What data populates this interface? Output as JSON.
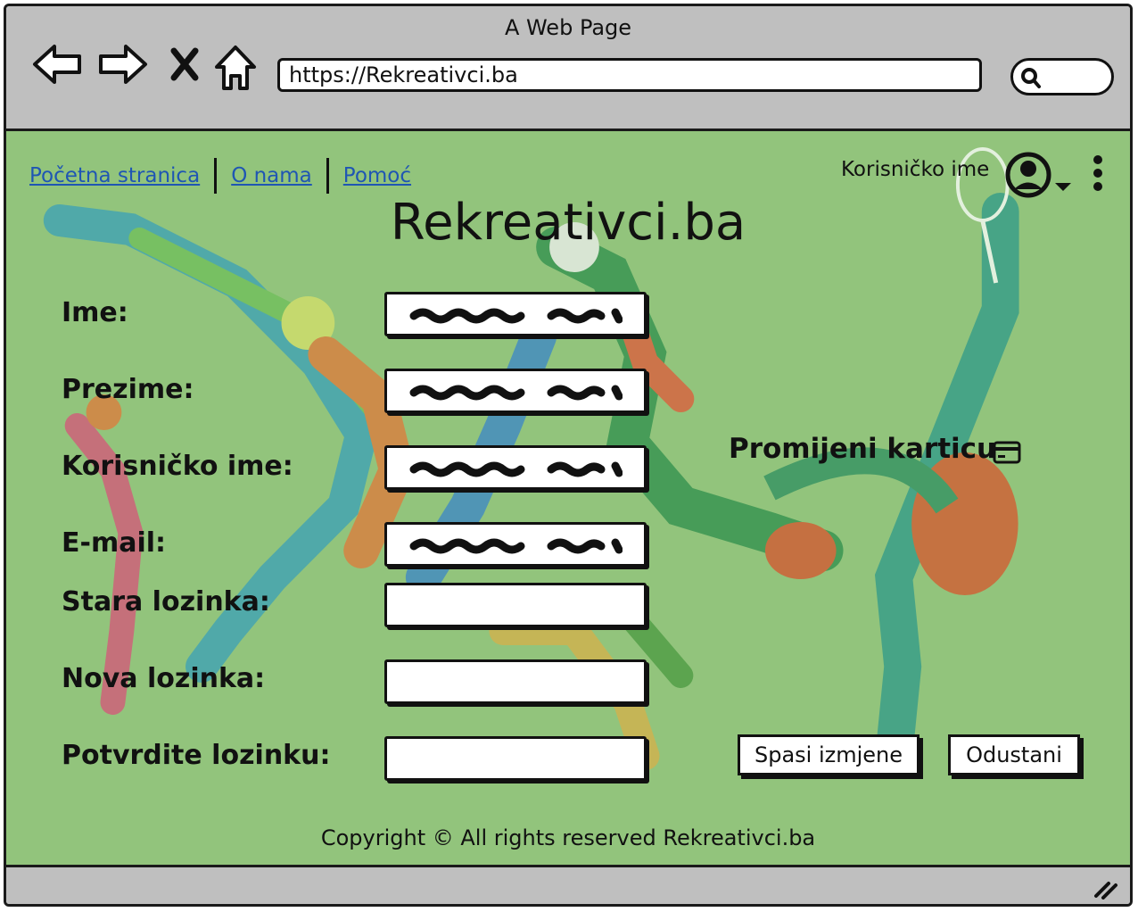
{
  "window": {
    "title": "A Web Page"
  },
  "browser": {
    "url": "https://Rekreativci.ba"
  },
  "nav": {
    "links": [
      "Početna stranica",
      "O nama",
      "Pomoć"
    ]
  },
  "user": {
    "name": "Korisničko ime"
  },
  "site": {
    "title": "Rekreativci.ba"
  },
  "form": {
    "labels": {
      "first_name": "Ime:",
      "last_name": "Prezime:",
      "username": "Korisničko ime:",
      "email": "E-mail:",
      "old_password": "Stara lozinka:",
      "new_password": "Nova lozinka:",
      "confirm_password": "Potvrdite lozinku:"
    }
  },
  "card": {
    "label": "Promijeni karticu"
  },
  "buttons": {
    "save": "Spasi izmjene",
    "cancel": "Odustani"
  },
  "footer": {
    "text": "Copyright © All rights reserved Rekreativci.ba"
  },
  "colors": {
    "content_bg": "#92c47c",
    "link": "#1f56b3",
    "chrome": "#bfbfbf"
  }
}
